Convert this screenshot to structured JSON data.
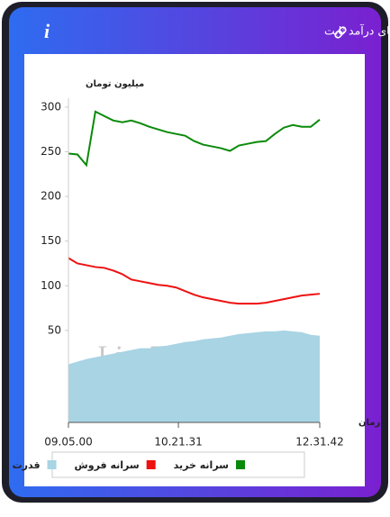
{
  "header": {
    "title": "سرانه ی خرید و فروش حقیقی در صندوق های درآمد ثابت",
    "info": "i"
  },
  "chart_data": {
    "type": "line",
    "y_label": "میلیون تومان",
    "x_label": "زمان",
    "watermark": "LiveTSE.ir",
    "x": [
      0,
      1,
      2,
      3,
      4,
      5,
      6,
      7,
      8,
      9,
      10,
      11,
      12,
      13,
      14,
      15,
      16,
      17,
      18,
      19,
      20,
      21,
      22,
      23,
      24,
      25,
      26,
      27,
      28
    ],
    "xlim": [
      0,
      28
    ],
    "xticks": [
      {
        "value": 0,
        "label": "09.05.00"
      },
      {
        "value": 12.25,
        "label": "10.21.31"
      },
      {
        "value": 28,
        "label": "12.31.42"
      }
    ],
    "ylim": [
      -53,
      310
    ],
    "yticks": [
      50,
      100,
      150,
      200,
      250,
      300
    ],
    "series": [
      {
        "name": "سرانه خرید",
        "color": "#0a8a0a",
        "kind": "line",
        "values": [
          248,
          247,
          235,
          295,
          290,
          285,
          283,
          285,
          282,
          278,
          275,
          272,
          270,
          268,
          262,
          258,
          256,
          254,
          251,
          257,
          259,
          261,
          262,
          270,
          277,
          280,
          278,
          278,
          286
        ]
      },
      {
        "name": "سرانه فروش",
        "color": "#ee1111",
        "kind": "line",
        "values": [
          131,
          125,
          123,
          121,
          120,
          117,
          113,
          107,
          105,
          103,
          101,
          100,
          98,
          94,
          90,
          87,
          85,
          83,
          81,
          80,
          80,
          80,
          81,
          83,
          85,
          87,
          89,
          90,
          91
        ]
      },
      {
        "name": "قدرت",
        "color": "#a8d4e4",
        "kind": "area",
        "values": [
          12,
          15,
          18,
          20,
          22,
          24,
          26,
          28,
          30,
          30,
          32,
          33,
          35,
          37,
          38,
          40,
          41,
          42,
          44,
          46,
          47,
          48,
          49,
          49,
          50,
          49,
          48,
          45,
          44
        ]
      }
    ]
  }
}
